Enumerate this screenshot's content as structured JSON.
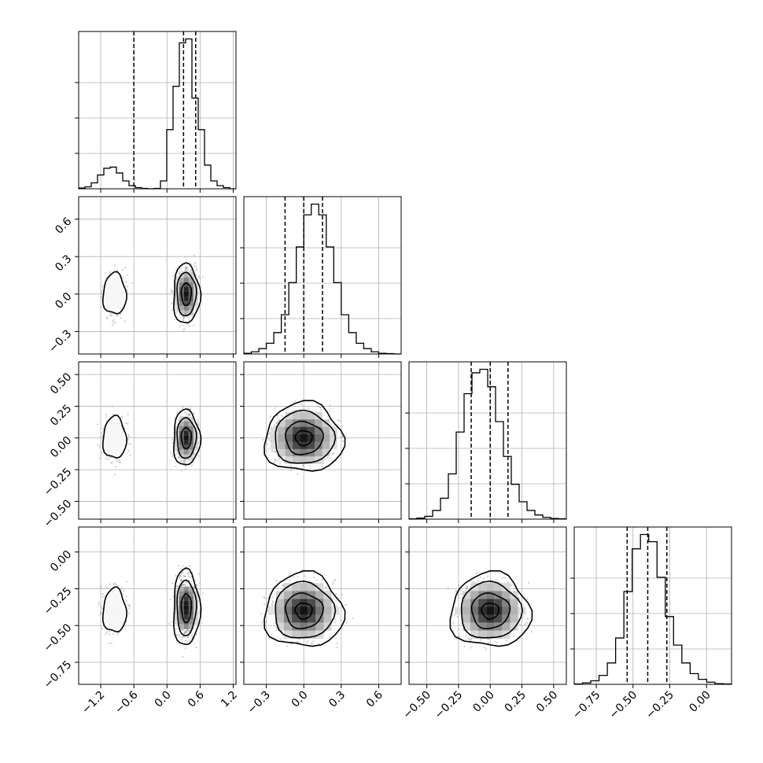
{
  "chart_data": {
    "type": "corner",
    "grid": true,
    "params": [
      {
        "ticks": [
          -1.2,
          -0.6,
          0.0,
          0.6,
          1.2
        ],
        "tick_labels": [
          "−1.2",
          "−0.6",
          "0.0",
          "0.6",
          "1.2"
        ],
        "range": [
          -1.6,
          1.25
        ]
      },
      {
        "ticks": [
          -0.3,
          0.0,
          0.3,
          0.6
        ],
        "tick_labels": [
          "−0.3",
          "0.0",
          "0.3",
          "0.6"
        ],
        "range": [
          -0.48,
          0.78
        ]
      },
      {
        "ticks": [
          -0.5,
          -0.25,
          0.0,
          0.25,
          0.5
        ],
        "tick_labels": [
          "−0.50",
          "−0.25",
          "0.00",
          "0.25",
          "0.50"
        ],
        "range": [
          -0.64,
          0.6
        ]
      },
      {
        "ticks": [
          -0.75,
          -0.5,
          -0.25,
          0.0
        ],
        "tick_labels": [
          "−0.75",
          "−0.50",
          "−0.25",
          "0.00"
        ],
        "range": [
          -0.9,
          0.17
        ]
      }
    ],
    "histograms": [
      {
        "quantiles": [
          -0.6,
          0.3,
          0.52
        ],
        "counts": [
          2,
          5,
          15,
          35,
          52,
          55,
          40,
          20,
          8,
          3,
          1,
          0,
          1,
          20,
          150,
          260,
          370,
          380,
          230,
          150,
          60,
          20,
          8,
          3,
          0
        ]
      },
      {
        "quantiles": [
          -0.15,
          0.0,
          0.15
        ],
        "counts": [
          2,
          6,
          15,
          30,
          60,
          110,
          200,
          300,
          390,
          420,
          390,
          300,
          200,
          110,
          60,
          30,
          15,
          6,
          2,
          1,
          0
        ]
      },
      {
        "quantiles": [
          -0.15,
          0.0,
          0.14
        ],
        "counts": [
          1,
          3,
          8,
          25,
          60,
          130,
          250,
          360,
          420,
          430,
          380,
          280,
          180,
          100,
          50,
          25,
          12,
          5,
          2,
          1
        ]
      },
      {
        "quantiles": [
          -0.54,
          -0.4,
          -0.27
        ],
        "counts": [
          1,
          4,
          10,
          25,
          60,
          130,
          260,
          380,
          420,
          400,
          300,
          190,
          110,
          60,
          30,
          14,
          6,
          2,
          1
        ]
      }
    ],
    "blobs": [
      {
        "row": 1,
        "col": 0,
        "center": [
          -0.95,
          0.0
        ],
        "spread": [
          0.14,
          0.11
        ],
        "levels": 1
      },
      {
        "row": 1,
        "col": 0,
        "center": [
          0.35,
          0.0
        ],
        "spread": [
          0.12,
          0.12
        ],
        "levels": 3
      },
      {
        "row": 2,
        "col": 0,
        "center": [
          -0.95,
          0.0
        ],
        "spread": [
          0.14,
          0.11
        ],
        "levels": 1
      },
      {
        "row": 2,
        "col": 0,
        "center": [
          0.35,
          0.0
        ],
        "spread": [
          0.12,
          0.11
        ],
        "levels": 3
      },
      {
        "row": 2,
        "col": 1,
        "center": [
          0.0,
          0.0
        ],
        "spread": [
          0.15,
          0.13
        ],
        "levels": 4
      },
      {
        "row": 3,
        "col": 0,
        "center": [
          -0.95,
          -0.4
        ],
        "spread": [
          0.14,
          0.1
        ],
        "levels": 1
      },
      {
        "row": 3,
        "col": 0,
        "center": [
          0.35,
          -0.38
        ],
        "spread": [
          0.12,
          0.13
        ],
        "levels": 3
      },
      {
        "row": 3,
        "col": 1,
        "center": [
          0.0,
          -0.4
        ],
        "spread": [
          0.15,
          0.12
        ],
        "levels": 4
      },
      {
        "row": 3,
        "col": 2,
        "center": [
          0.0,
          -0.4
        ],
        "spread": [
          0.15,
          0.12
        ],
        "levels": 4
      }
    ]
  }
}
